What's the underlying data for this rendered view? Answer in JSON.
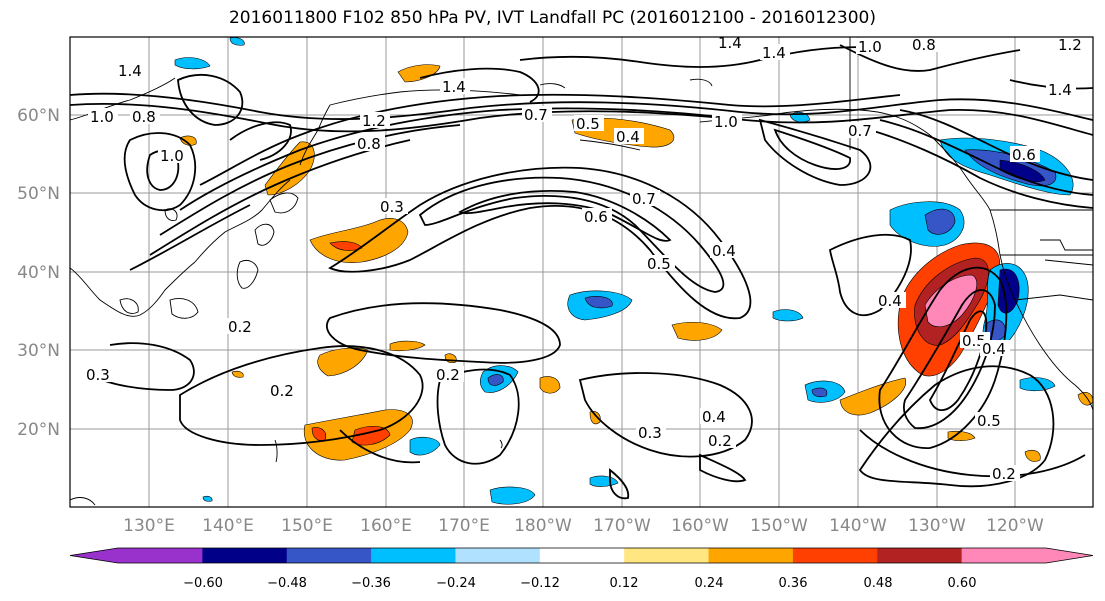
{
  "title": "2016011800 F102 850 hPa PV, IVT Landfall PC (2016012100 - 2016012300)",
  "lat_labels": [
    "60°N",
    "50°N",
    "40°N",
    "30°N",
    "20°N"
  ],
  "lon_labels": [
    "130°E",
    "140°E",
    "150°E",
    "160°E",
    "170°E",
    "180°W",
    "170°W",
    "160°W",
    "150°W",
    "140°W",
    "130°W",
    "120°W"
  ],
  "colorbar": {
    "ticks": [
      "−0.60",
      "−0.48",
      "−0.36",
      "−0.24",
      "−0.12",
      "0.12",
      "0.24",
      "0.36",
      "0.48",
      "0.60"
    ],
    "colors": [
      "#9932CC",
      "#000088",
      "#3656C8",
      "#00BFFF",
      "#B0E2FF",
      "#FFFFFF",
      "#FFE680",
      "#FFA500",
      "#FF4000",
      "#B22222",
      "#FF88B8"
    ]
  },
  "contour_labels": [
    "1.4",
    "1.4",
    "1.0",
    "0.8",
    "1.4",
    "1.0",
    "0.8",
    "1.2",
    "1.4",
    "1.0",
    "0.8",
    "0.7",
    "0.5",
    "0.4",
    "1.0",
    "0.7",
    "0.6",
    "1.4",
    "1.2",
    "0.3",
    "0.6",
    "0.7",
    "0.5",
    "0.4",
    "0.4",
    "0.3",
    "0.2",
    "0.2",
    "0.2",
    "0.3",
    "0.4",
    "0.2",
    "0.5",
    "0.4",
    "0.5",
    "0.2"
  ]
}
